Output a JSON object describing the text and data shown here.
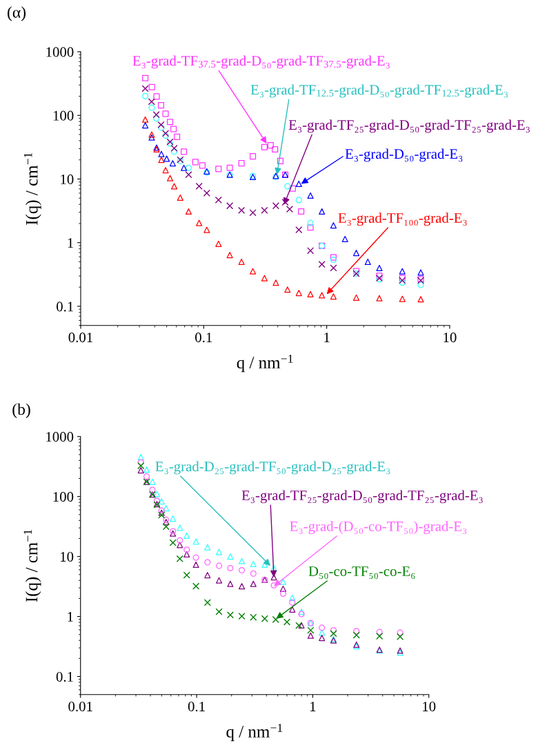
{
  "chart_data": [
    {
      "type": "scatter",
      "title": "(α)",
      "xlabel": "q / nm$^{−1}$",
      "ylabel": "I(q) / cm$^{−1}$",
      "log": "xy",
      "xlim": [
        0.01,
        10
      ],
      "ylim": [
        0.05,
        1000
      ],
      "xticks": [
        0.01,
        0.1,
        1,
        10
      ],
      "yticks": [
        0.1,
        1,
        10,
        100,
        1000
      ],
      "series": [
        {
          "color": "#ff33ff",
          "marker": "square",
          "x": [
            0.0335,
            0.0379,
            0.0414,
            0.045,
            0.049,
            0.0533,
            0.0569,
            0.0607,
            0.069,
            0.0857,
            0.0976,
            0.132,
            0.163,
            0.203,
            0.251,
            0.312,
            0.35,
            0.38,
            0.42,
            0.46,
            0.53,
            0.62,
            0.738,
            0.914,
            1.135,
            1.74,
            2.68,
            4.12,
            5.82
          ],
          "values": [
            385,
            278,
            198,
            144,
            106,
            79,
            61,
            46,
            26.9,
            18.5,
            16.3,
            14.4,
            15,
            17.7,
            22.7,
            31.7,
            33.9,
            29.2,
            19.2,
            11.7,
            7.1,
            3.09,
            1.73,
            0.89,
            0.586,
            0.356,
            0.301,
            0.277,
            0.266
          ]
        },
        {
          "color": "#33ffff",
          "marker": "circle",
          "x": [
            0.0335,
            0.0378,
            0.0412,
            0.0453,
            0.049,
            0.0533,
            0.0576,
            0.0645,
            0.0754,
            0.106,
            0.163,
            0.251,
            0.386,
            0.48,
            0.594,
            0.738,
            0.914,
            1.135,
            1.74,
            2.68,
            4.12,
            5.82
          ],
          "values": [
            201,
            132,
            89.5,
            64,
            48,
            35.9,
            26.9,
            19.2,
            15,
            12.7,
            11.7,
            11.2,
            10.8,
            7.7,
            4.68,
            2.04,
            0.89,
            0.538,
            0.327,
            0.266,
            0.235,
            0.216
          ]
        },
        {
          "color": "#800080",
          "marker": "cross",
          "x": [
            0.0335,
            0.0377,
            0.0412,
            0.045,
            0.049,
            0.0533,
            0.0576,
            0.0645,
            0.0754,
            0.0918,
            0.106,
            0.132,
            0.163,
            0.203,
            0.251,
            0.312,
            0.386,
            0.46,
            0.5,
            0.594,
            0.738,
            0.914,
            1.135,
            1.74,
            2.68,
            4.12,
            5.82
          ],
          "values": [
            264,
            164,
            103,
            71,
            52,
            38.4,
            30.4,
            20,
            11.7,
            7.7,
            6.0,
            4.68,
            3.8,
            3.22,
            2.96,
            3.22,
            3.8,
            4.31,
            3.36,
            1.59,
            0.75,
            0.456,
            0.4,
            0.327,
            0.277,
            0.255,
            0.255
          ]
        },
        {
          "color": "#0000ff",
          "marker": "triangle",
          "x": [
            0.0335,
            0.0378,
            0.0414,
            0.0453,
            0.05,
            0.056,
            0.069,
            0.106,
            0.163,
            0.251,
            0.386,
            0.46,
            0.594,
            0.738,
            0.914,
            1.135,
            1.41,
            1.74,
            2.16,
            2.68,
            4.12,
            5.82
          ],
          "values": [
            69.8,
            45,
            31.2,
            24.7,
            20.9,
            17.7,
            15,
            13.2,
            11.7,
            10.8,
            11.2,
            11.7,
            8.4,
            5.5,
            3.09,
            1.87,
            1.14,
            0.69,
            0.5,
            0.4,
            0.356,
            0.341
          ]
        },
        {
          "color": "#ff0000",
          "marker": "triangle",
          "x": [
            0.0335,
            0.0378,
            0.0414,
            0.0453,
            0.049,
            0.0533,
            0.0576,
            0.0645,
            0.0754,
            0.0918,
            0.106,
            0.132,
            0.163,
            0.203,
            0.251,
            0.312,
            0.386,
            0.48,
            0.594,
            0.738,
            0.914,
            1.135,
            1.74,
            2.68,
            4.12,
            5.82
          ],
          "values": [
            86,
            50,
            29.2,
            20,
            13.8,
            10.3,
            7.7,
            5.1,
            3.09,
            2.04,
            1.59,
            0.96,
            0.64,
            0.5,
            0.356,
            0.277,
            0.235,
            0.183,
            0.162,
            0.155,
            0.149,
            0.143,
            0.137,
            0.134,
            0.131,
            0.129
          ]
        }
      ],
      "annotations": [
        {
          "text": "E₃-grad-TF$_{37.5}$-grad-D₅₀-grad-TF$_{37.5}$-grad-E₃",
          "x": 0.325,
          "y": 36
        },
        {
          "text": "E₃-grad-TF$_{12.5}$-grad-D₅₀-grad-TF$_{12.5}$-grad-E₃",
          "x": 0.394,
          "y": 11.7
        },
        {
          "text": "E₃-grad-TF₂₅-grad-D₅₀-grad-TF₂₅-grad-E₃",
          "x": 0.45,
          "y": 3.96
        },
        {
          "text": "E₃-grad-D₅₀-grad-E₃",
          "x": 0.62,
          "y": 8.4
        },
        {
          "text": "E₃-grad-TF₁₀₀-grad-E₃",
          "x": 1.0,
          "y": 0.155
        }
      ]
    },
    {
      "type": "scatter",
      "title": "(b)",
      "xlabel": "q / nm$^{−1}$",
      "ylabel": "I(q) / cm$^{−1}$",
      "log": "xy",
      "xlim": [
        0.01,
        10
      ],
      "ylim": [
        0.05,
        1000
      ],
      "xticks": [
        0.01,
        0.1,
        1,
        10
      ],
      "yticks": [
        0.1,
        1,
        10,
        100,
        1000
      ],
      "series": [
        {
          "color": "#33ffff",
          "marker": "triangle",
          "x": [
            0.0331,
            0.0371,
            0.0416,
            0.0455,
            0.0499,
            0.0546,
            0.0625,
            0.0717,
            0.0822,
            0.0987,
            0.124,
            0.156,
            0.195,
            0.245,
            0.308,
            0.386,
            0.463,
            0.556,
            0.667,
            0.8,
            0.96,
            1.2,
            1.51,
            2.38,
            3.76,
            5.66
          ],
          "values": [
            453,
            281,
            176,
            110,
            83.2,
            63.8,
            42.9,
            30.2,
            22.2,
            17.8,
            14.3,
            11.9,
            10.0,
            8.4,
            7.5,
            7.3,
            6.4,
            3.8,
            2.05,
            1.2,
            0.78,
            0.54,
            0.42,
            0.32,
            0.27,
            0.25
          ]
        },
        {
          "color": "#800080",
          "marker": "triangle",
          "x": [
            0.0331,
            0.0371,
            0.0416,
            0.0455,
            0.0499,
            0.0546,
            0.0625,
            0.0717,
            0.0822,
            0.0987,
            0.124,
            0.156,
            0.195,
            0.245,
            0.308,
            0.386,
            0.463,
            0.556,
            0.667,
            0.8,
            0.96,
            1.2,
            1.51,
            2.38,
            3.76,
            5.66
          ],
          "values": [
            274,
            176,
            108,
            74.8,
            53.5,
            37.6,
            24.2,
            15.6,
            10.9,
            7.3,
            4.9,
            4.0,
            3.5,
            3.2,
            3.5,
            4.1,
            4.5,
            2.9,
            1.31,
            0.71,
            0.48,
            0.44,
            0.4,
            0.34,
            0.28,
            0.27
          ]
        },
        {
          "color": "#ff66ff",
          "marker": "circle",
          "x": [
            0.0331,
            0.0371,
            0.0416,
            0.0455,
            0.0499,
            0.0546,
            0.0625,
            0.0717,
            0.0822,
            0.0987,
            0.124,
            0.156,
            0.195,
            0.245,
            0.308,
            0.386,
            0.463,
            0.556,
            0.667,
            0.8,
            0.96,
            1.2,
            1.51,
            2.38,
            3.76,
            5.66
          ],
          "values": [
            372,
            216,
            129,
            84.7,
            58.5,
            41,
            26.4,
            18.6,
            13.0,
            9.6,
            8.0,
            7.0,
            6.4,
            5.9,
            5.2,
            4.1,
            3.3,
            2.4,
            1.71,
            1.1,
            0.78,
            0.65,
            0.59,
            0.57,
            0.55,
            0.54
          ]
        },
        {
          "color": "#008000",
          "marker": "cross",
          "x": [
            0.0331,
            0.0371,
            0.0416,
            0.0455,
            0.0499,
            0.0546,
            0.0625,
            0.0717,
            0.0822,
            0.0987,
            0.124,
            0.156,
            0.195,
            0.245,
            0.308,
            0.386,
            0.48,
            0.6,
            0.76,
            0.96,
            1.51,
            2.38,
            3.76,
            5.66
          ],
          "values": [
            326,
            176,
            108,
            72.9,
            49,
            31.5,
            17,
            9.2,
            4.9,
            3.2,
            1.71,
            1.2,
            1.06,
            1.01,
            0.97,
            0.92,
            0.89,
            0.81,
            0.71,
            0.59,
            0.52,
            0.49,
            0.47,
            0.46
          ]
        }
      ],
      "annotations": [
        {
          "text": "E₃-grad-D₂₅-grad-TF₅₀-grad-D₂₅-grad-E₃",
          "x": 0.432,
          "y": 7.0
        },
        {
          "text": "E₃-grad-TF₂₅-grad-D₅₀-grad-TF₂₅-grad-E₃",
          "x": 0.463,
          "y": 4.5
        },
        {
          "text": "E₃-grad-(D₅₀-co-TF₅₀)-grad-E₃",
          "x": 0.463,
          "y": 3.2
        },
        {
          "text": "D₅₀-co-TF₅₀-co-E₆",
          "x": 0.485,
          "y": 0.92
        }
      ]
    }
  ]
}
